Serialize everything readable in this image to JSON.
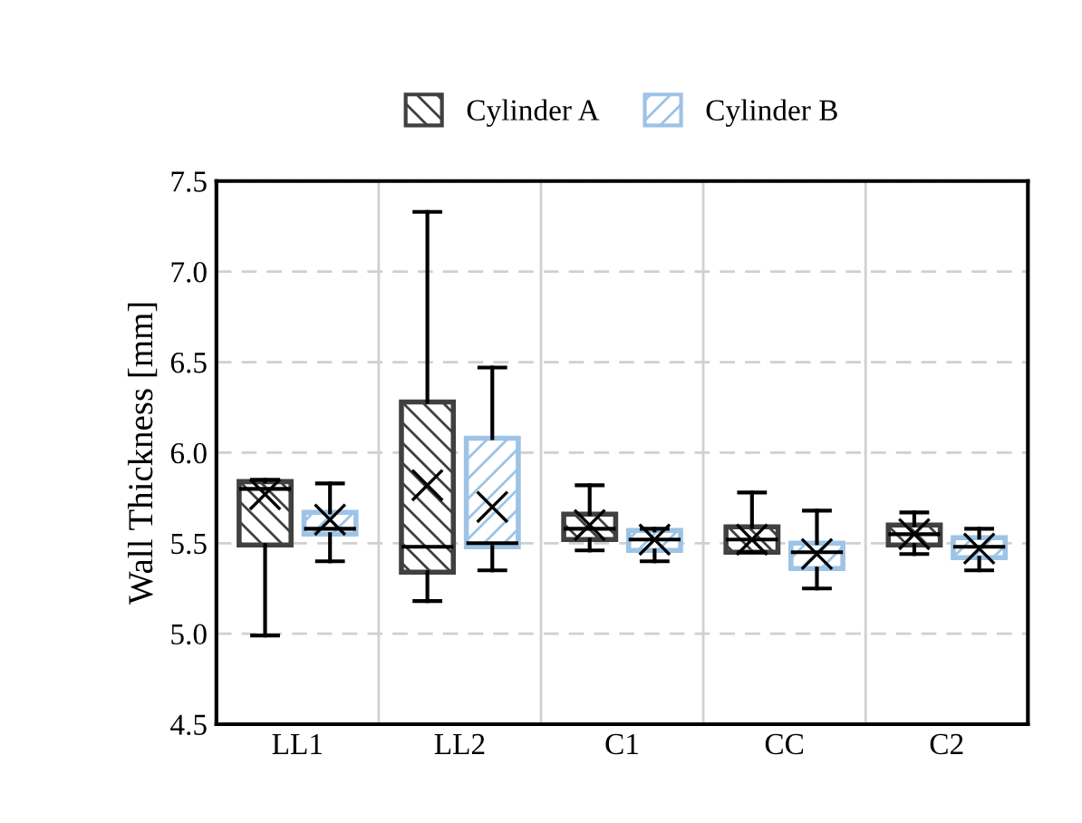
{
  "chart_data": {
    "type": "box",
    "ylabel": "Wall Thickness [mm]",
    "categories": [
      "LL1",
      "LL2",
      "C1",
      "CC",
      "C2"
    ],
    "ylim": [
      4.5,
      7.5
    ],
    "yticks": [
      4.5,
      {
        "value": 5,
        "label": "5.0"
      },
      5.5,
      {
        "value": 6,
        "label": "6.0"
      },
      6.5,
      {
        "value": 7,
        "label": "7.0"
      },
      7.5
    ],
    "grid": true,
    "legend": "top",
    "marker": "cross",
    "series": [
      {
        "name": "Cylinder A",
        "color": "#404040",
        "boxes": [
          {
            "low": 4.99,
            "q1": 5.49,
            "median": 5.8,
            "q3": 5.84,
            "high": 5.85,
            "mean": 5.77
          },
          {
            "low": 5.18,
            "q1": 5.34,
            "median": 5.48,
            "q3": 6.28,
            "high": 7.33,
            "mean": 5.82
          },
          {
            "low": 5.46,
            "q1": 5.52,
            "median": 5.58,
            "q3": 5.66,
            "high": 5.82,
            "mean": 5.6
          },
          {
            "low": 5.45,
            "q1": 5.45,
            "median": 5.52,
            "q3": 5.59,
            "high": 5.78,
            "mean": 5.52
          },
          {
            "low": 5.44,
            "q1": 5.49,
            "median": 5.55,
            "q3": 5.6,
            "high": 5.67,
            "mean": 5.55
          }
        ]
      },
      {
        "name": "Cylinder B",
        "color": "#9dc3e6",
        "boxes": [
          {
            "low": 5.4,
            "q1": 5.55,
            "median": 5.58,
            "q3": 5.67,
            "high": 5.83,
            "mean": 5.63
          },
          {
            "low": 5.35,
            "q1": 5.48,
            "median": 5.5,
            "q3": 6.08,
            "high": 6.47,
            "mean": 5.7
          },
          {
            "low": 5.4,
            "q1": 5.46,
            "median": 5.52,
            "q3": 5.57,
            "high": 5.58,
            "mean": 5.52
          },
          {
            "low": 5.25,
            "q1": 5.36,
            "median": 5.45,
            "q3": 5.5,
            "high": 5.68,
            "mean": 5.44
          },
          {
            "low": 5.35,
            "q1": 5.42,
            "median": 5.48,
            "q3": 5.53,
            "high": 5.58,
            "mean": 5.47
          }
        ]
      }
    ]
  }
}
